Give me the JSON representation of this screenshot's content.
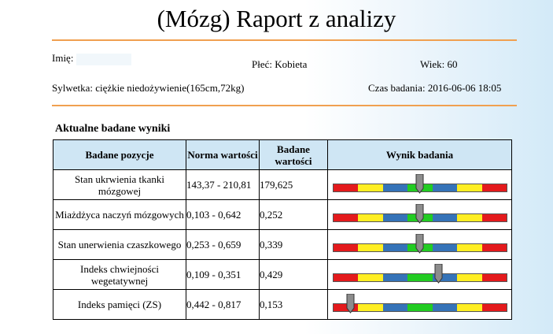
{
  "report": {
    "title": "(Mózg) Raport z analizy"
  },
  "patient": {
    "name_label": "Imię:",
    "name_value": "",
    "sex_label": "Płeć:",
    "sex_value": "Kobieta",
    "age_label": "Wiek:",
    "age_value": "60",
    "figure_label": "Sylwetka:",
    "figure_value": "ciężkie niedożywienie(165cm,72kg)",
    "time_label": "Czas badania:",
    "time_value": "2016-06-06 18:05"
  },
  "results": {
    "section_title": "Aktualne badane wyniki",
    "headers": {
      "position": "Badane pozycje",
      "norm": "Norma wartości",
      "value": "Badane wartości",
      "result": "Wynik badania"
    },
    "rows": [
      {
        "position": "Stan ukrwienia tkanki mózgowej",
        "norm": "143,37 - 210,81",
        "value": "179,625",
        "level": 0.5
      },
      {
        "position": "Miażdżyca naczyń mózgowych",
        "norm": "0,103 - 0,642",
        "value": "0,252",
        "level": 0.5
      },
      {
        "position": "Stan unerwienia czaszkowego",
        "norm": "0,253 - 0,659",
        "value": "0,339",
        "level": 0.5
      },
      {
        "position": "Indeks chwiejności wegetatywnej",
        "norm": "0,109 - 0,351",
        "value": "0,429",
        "level": 0.61
      },
      {
        "position": "Indeks pamięci (ZS)",
        "norm": "0,442 - 0,817",
        "value": "0,153",
        "level": 0.1
      }
    ],
    "scale_colors": [
      "#e41a1c",
      "#ffee22",
      "#3573b8",
      "#22cc22",
      "#3573b8",
      "#ffee22",
      "#e41a1c"
    ],
    "marker_color": "#8c8c8c"
  }
}
